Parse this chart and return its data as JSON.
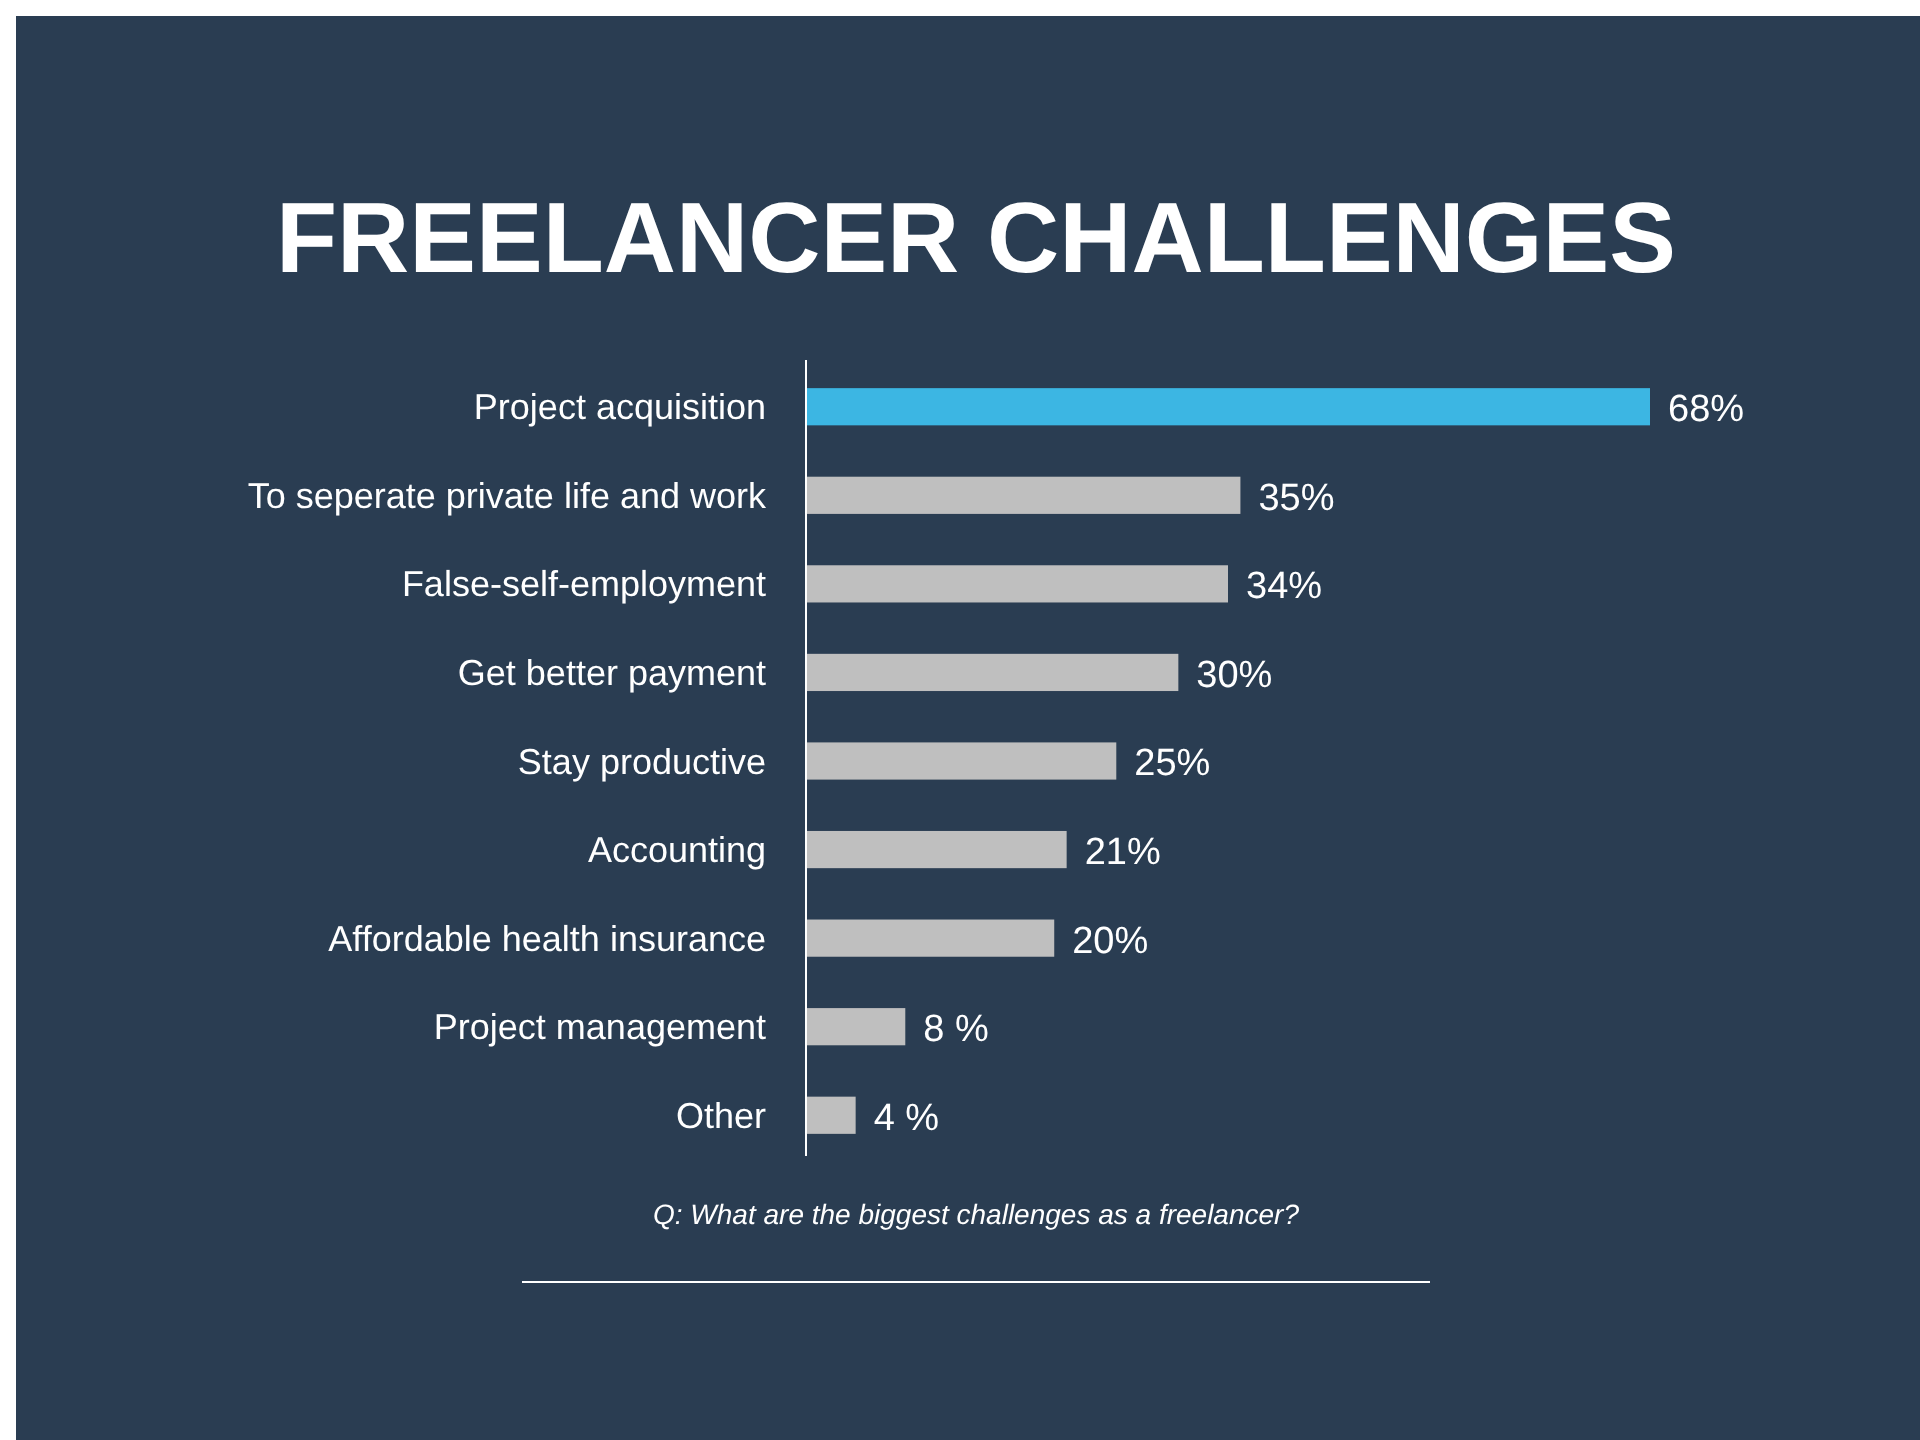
{
  "chart_data": {
    "type": "bar",
    "orientation": "horizontal",
    "title": "FREELANCER CHALLENGES",
    "categories": [
      "Project acquisition",
      "To seperate private life and work",
      "False-self-employment",
      "Get better payment",
      "Stay productive",
      "Accounting",
      "Affordable health insurance",
      "Project management",
      "Other"
    ],
    "values": [
      68,
      35,
      34,
      30,
      25,
      21,
      20,
      8,
      4
    ],
    "value_labels": [
      "68%",
      "35%",
      "34%",
      "30%",
      "25%",
      "21%",
      "20%",
      "8 %",
      "4 %"
    ],
    "colors": [
      "#3cb6e3",
      "#bfbfbf",
      "#bfbfbf",
      "#bfbfbf",
      "#bfbfbf",
      "#bfbfbf",
      "#bfbfbf",
      "#bfbfbf",
      "#bfbfbf"
    ],
    "annotations": [
      "Q: What are the biggest challenges as a freelancer?"
    ]
  }
}
